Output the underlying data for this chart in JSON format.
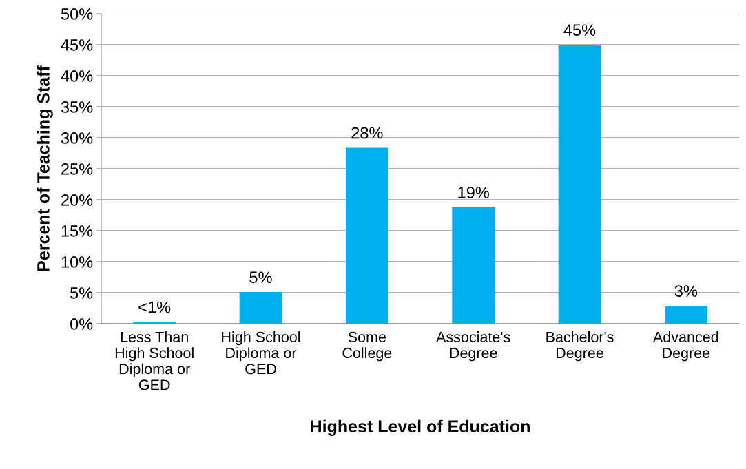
{
  "chart_data": {
    "type": "bar",
    "xlabel": "Highest Level of Education",
    "ylabel": "Percent of Teaching Staff",
    "categories": [
      "Less Than\nHigh School\nDiploma or\nGED",
      "High School\nDiploma or\nGED",
      "Some\nCollege",
      "Associate's\nDegree",
      "Bachelor's\nDegree",
      "Advanced\nDegree"
    ],
    "values": [
      0.3,
      5.1,
      28.4,
      18.8,
      45.0,
      2.9
    ],
    "value_labels": [
      "<1%",
      "5%",
      "28%",
      "19%",
      "45%",
      "3%"
    ],
    "color": "#00b0f0",
    "ylim": [
      0,
      50
    ],
    "yticks": [
      {
        "value": 0,
        "label": "0%"
      },
      {
        "value": 5,
        "label": "5%"
      },
      {
        "value": 10,
        "label": "10%"
      },
      {
        "value": 15,
        "label": "15%"
      },
      {
        "value": 20,
        "label": "20%"
      },
      {
        "value": 25,
        "label": "25%"
      },
      {
        "value": 30,
        "label": "30%"
      },
      {
        "value": 35,
        "label": "35%"
      },
      {
        "value": 40,
        "label": "40%"
      },
      {
        "value": 45,
        "label": "45%"
      },
      {
        "value": 50,
        "label": "50%"
      }
    ],
    "grid": "y",
    "legend": false
  }
}
